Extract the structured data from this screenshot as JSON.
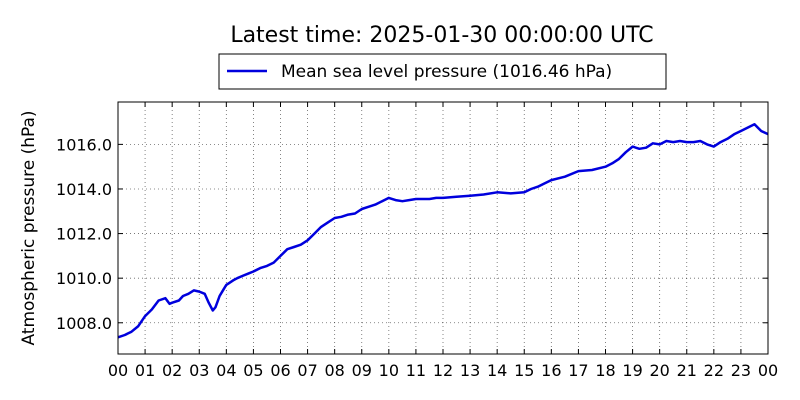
{
  "chart_data": {
    "type": "line",
    "title": "Latest time: 2025-01-30 00:00:00 UTC",
    "xlabel": "",
    "ylabel": "Atmospheric pressure (hPa)",
    "xlim": [
      0,
      24
    ],
    "ylim": [
      1006.6,
      1017.9
    ],
    "grid": true,
    "legend_position": "top-center",
    "x_tick_values": [
      0,
      1,
      2,
      3,
      4,
      5,
      6,
      7,
      8,
      9,
      10,
      11,
      12,
      13,
      14,
      15,
      16,
      17,
      18,
      19,
      20,
      21,
      22,
      23,
      24
    ],
    "x_tick_labels": [
      "00",
      "01",
      "02",
      "03",
      "04",
      "05",
      "06",
      "07",
      "08",
      "09",
      "10",
      "11",
      "12",
      "13",
      "14",
      "15",
      "16",
      "17",
      "18",
      "19",
      "20",
      "21",
      "22",
      "23",
      "00"
    ],
    "y_tick_values": [
      1008,
      1010,
      1012,
      1014,
      1016
    ],
    "y_tick_labels": [
      "1008.0",
      "1010.0",
      "1012.0",
      "1014.0",
      "1016.0"
    ],
    "series": [
      {
        "name": "Mean sea level pressure (1016.46 hPa)",
        "color": "#0000dd",
        "x": [
          0,
          0.25,
          0.5,
          0.75,
          1.0,
          1.25,
          1.5,
          1.75,
          1.9,
          2.0,
          2.25,
          2.4,
          2.6,
          2.8,
          3.0,
          3.2,
          3.35,
          3.5,
          3.6,
          3.75,
          3.9,
          4.0,
          4.25,
          4.4,
          4.6,
          4.8,
          5.0,
          5.25,
          5.5,
          5.75,
          6.0,
          6.25,
          6.5,
          6.75,
          7.0,
          7.25,
          7.5,
          7.75,
          8.0,
          8.25,
          8.5,
          8.75,
          9.0,
          9.25,
          9.5,
          9.75,
          10.0,
          10.25,
          10.5,
          10.75,
          11.0,
          11.25,
          11.5,
          11.75,
          12.0,
          12.5,
          13.0,
          13.5,
          14.0,
          14.5,
          15.0,
          15.25,
          15.5,
          15.75,
          16.0,
          16.5,
          17.0,
          17.5,
          18.0,
          18.25,
          18.5,
          18.75,
          19.0,
          19.25,
          19.5,
          19.75,
          20.0,
          20.25,
          20.5,
          20.75,
          21.0,
          21.25,
          21.5,
          21.75,
          22.0,
          22.25,
          22.5,
          22.75,
          23.0,
          23.25,
          23.5,
          23.75,
          24.0
        ],
        "values": [
          1007.35,
          1007.45,
          1007.6,
          1007.85,
          1008.3,
          1008.6,
          1009.0,
          1009.1,
          1008.85,
          1008.9,
          1009.0,
          1009.2,
          1009.3,
          1009.45,
          1009.4,
          1009.3,
          1008.9,
          1008.55,
          1008.7,
          1009.2,
          1009.5,
          1009.7,
          1009.9,
          1010.0,
          1010.1,
          1010.2,
          1010.3,
          1010.45,
          1010.55,
          1010.7,
          1011.0,
          1011.3,
          1011.4,
          1011.5,
          1011.7,
          1012.0,
          1012.3,
          1012.5,
          1012.7,
          1012.75,
          1012.85,
          1012.9,
          1013.1,
          1013.2,
          1013.3,
          1013.45,
          1013.6,
          1013.5,
          1013.45,
          1013.5,
          1013.55,
          1013.55,
          1013.55,
          1013.6,
          1013.6,
          1013.65,
          1013.7,
          1013.75,
          1013.85,
          1013.8,
          1013.85,
          1014.0,
          1014.1,
          1014.25,
          1014.4,
          1014.55,
          1014.8,
          1014.85,
          1015.0,
          1015.15,
          1015.35,
          1015.65,
          1015.9,
          1015.8,
          1015.85,
          1016.05,
          1016.0,
          1016.15,
          1016.1,
          1016.15,
          1016.1,
          1016.1,
          1016.15,
          1016.0,
          1015.9,
          1016.1,
          1016.25,
          1016.45,
          1016.6,
          1016.75,
          1016.9,
          1016.6,
          1016.46
        ]
      }
    ]
  }
}
